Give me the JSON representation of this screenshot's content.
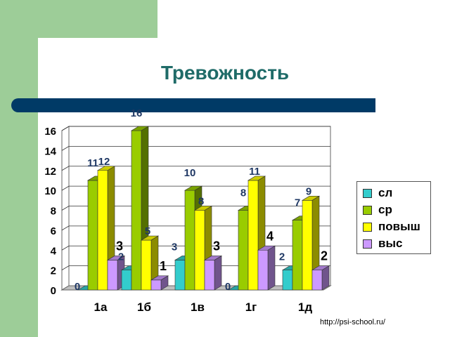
{
  "slide": {
    "title": "Тревожность",
    "footer": "http://psi-school.ru/"
  },
  "colors": {
    "background_accent": "#9dcd98",
    "title": "#1f6b68",
    "title_bar": "#003a66"
  },
  "chart_data": {
    "type": "bar",
    "style": "3d-clustered-column",
    "title": "",
    "xlabel": "",
    "ylabel": "",
    "ylim": [
      0,
      16
    ],
    "yticks": [
      0,
      2,
      4,
      6,
      8,
      10,
      12,
      14,
      16
    ],
    "grid": true,
    "legend_position": "right",
    "categories": [
      "1а",
      "1б",
      "1в",
      "1г",
      "1д"
    ],
    "series": [
      {
        "name": "сл",
        "color": "#33cccc",
        "values": [
          0,
          2,
          3,
          0,
          2
        ]
      },
      {
        "name": "ср",
        "color": "#99cc00",
        "values": [
          11,
          16,
          10,
          8,
          7
        ]
      },
      {
        "name": "повыш",
        "color": "#ffff00",
        "values": [
          12,
          5,
          8,
          11,
          9
        ]
      },
      {
        "name": "выс",
        "color": "#cc99ff",
        "values": [
          3,
          1,
          3,
          4,
          2
        ]
      }
    ]
  }
}
